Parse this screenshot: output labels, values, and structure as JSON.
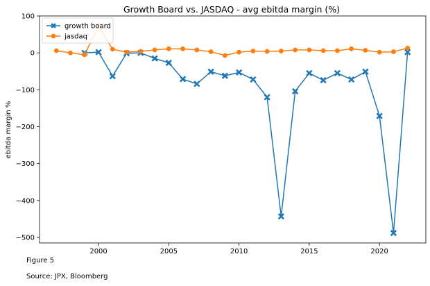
{
  "chart_data": {
    "type": "line",
    "title": "Growth Board vs. JASDAQ - avg ebitda margin (%)",
    "xlabel": "",
    "ylabel": "ebitda margin %",
    "xlim": [
      1995.8,
      2023.3
    ],
    "ylim": [
      -515,
      100
    ],
    "x_ticks": [
      2000,
      2005,
      2010,
      2015,
      2020
    ],
    "y_ticks": [
      100,
      0,
      -100,
      -200,
      -300,
      -400,
      -500
    ],
    "grid": false,
    "legend_position": "top-left",
    "series": [
      {
        "name": "growth board",
        "color": "#1f77b4",
        "marker": "x",
        "x": [
          1999,
          2000,
          2001,
          2002,
          2003,
          2004,
          2005,
          2006,
          2007,
          2008,
          2009,
          2010,
          2011,
          2012,
          2013,
          2014,
          2015,
          2016,
          2017,
          2018,
          2019,
          2020,
          2021,
          2022
        ],
        "y": [
          0,
          2,
          -63,
          -1,
          0,
          -15,
          -27,
          -71,
          -84,
          -51,
          -62,
          -53,
          -72,
          -120,
          -443,
          -104,
          -55,
          -74,
          -55,
          -72,
          -51,
          -171,
          -488,
          2
        ]
      },
      {
        "name": "jasdaq",
        "color": "#ff7f0e",
        "marker": "o",
        "x": [
          1997,
          1998,
          1999,
          2000,
          2001,
          2002,
          2003,
          2004,
          2005,
          2006,
          2007,
          2008,
          2009,
          2010,
          2011,
          2012,
          2013,
          2014,
          2015,
          2016,
          2017,
          2018,
          2019,
          2020,
          2021,
          2022
        ],
        "y": [
          6,
          0,
          -5,
          72,
          10,
          2,
          4,
          8,
          11,
          11,
          8,
          3,
          -7,
          2,
          5,
          4,
          5,
          8,
          8,
          6,
          6,
          11,
          7,
          2,
          3,
          13
        ]
      }
    ]
  },
  "captions": {
    "figure": "Figure 5",
    "source": "Source: JPX, Bloomberg"
  }
}
